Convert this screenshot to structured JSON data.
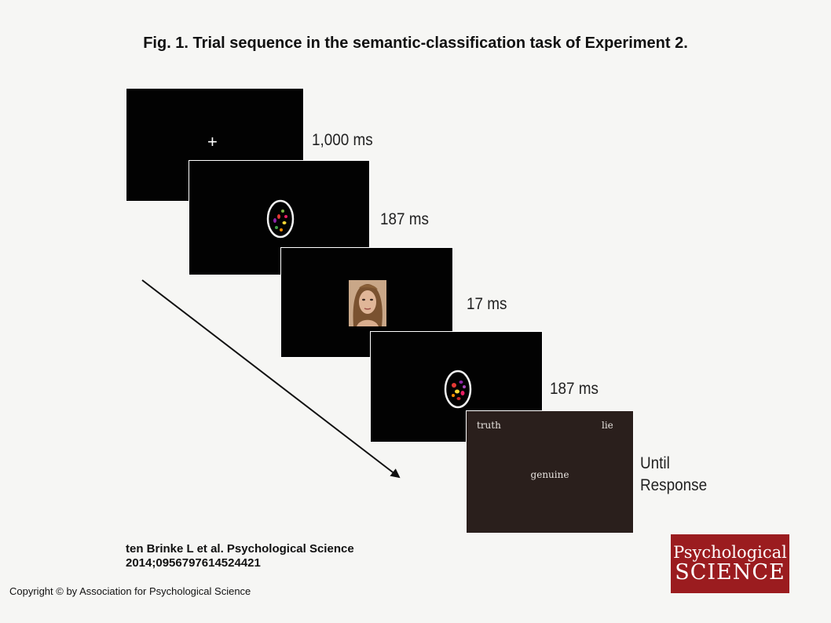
{
  "figure": {
    "title": "Fig. 1. Trial sequence in the semantic-classification task of Experiment 2."
  },
  "sequence": [
    {
      "duration": "1,000 ms"
    },
    {
      "duration": "187 ms"
    },
    {
      "duration": "17 ms"
    },
    {
      "duration": "187 ms"
    },
    {
      "duration_line1": "Until",
      "duration_line2": "Response"
    }
  ],
  "fixation": {
    "symbol": "+"
  },
  "response_screen": {
    "left_label": "truth",
    "right_label": "lie",
    "target_word": "genuine"
  },
  "citation": {
    "line1": "ten Brinke L et al. Psychological Science",
    "line2": "2014;0956797614524421"
  },
  "copyright": "Copyright © by Association for Psychological Science",
  "logo": {
    "line1": "Psychological",
    "line2": "SCIENCE",
    "color": "#9b1c1f"
  }
}
